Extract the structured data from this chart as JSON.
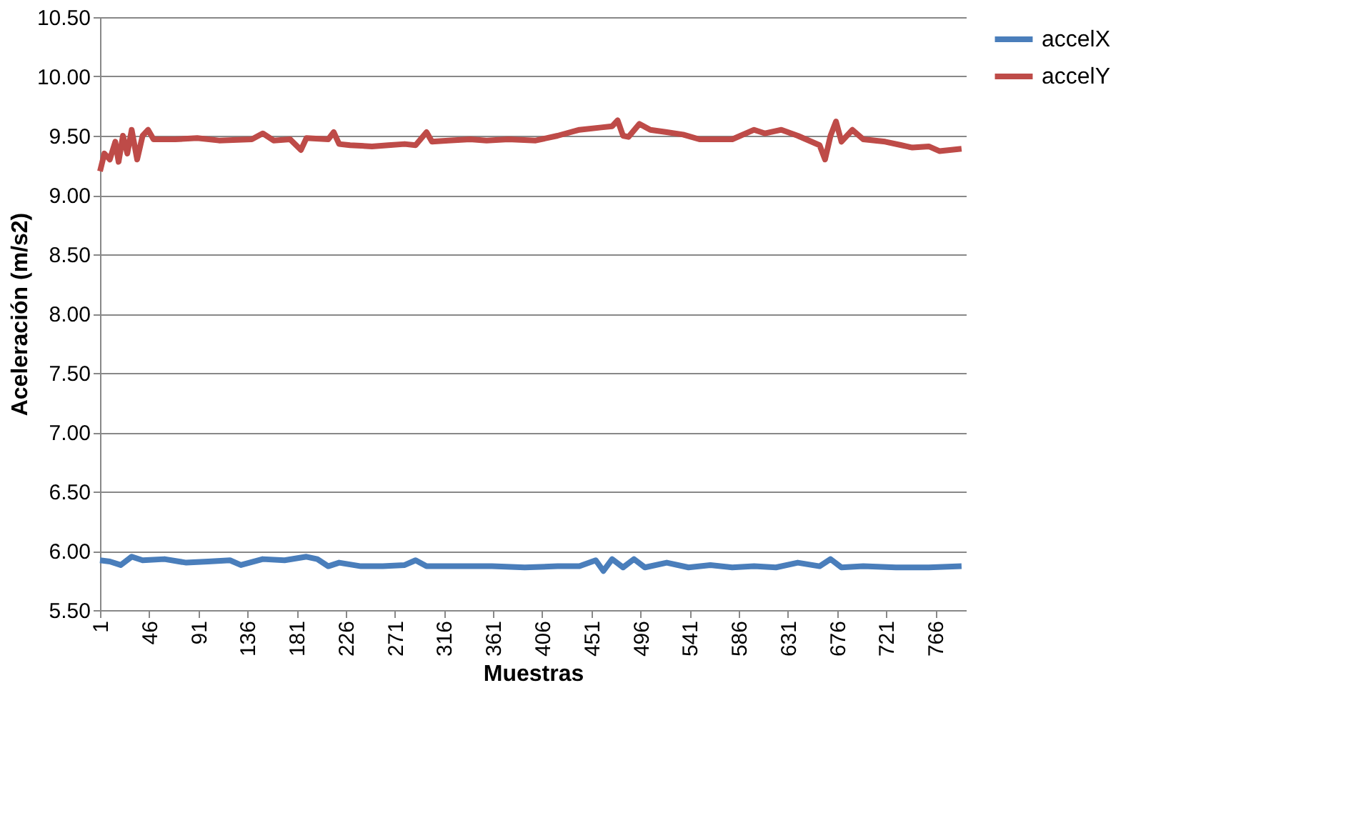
{
  "chart_data": {
    "type": "line",
    "xlabel": "Muestras",
    "ylabel": "Aceleración (m/s2)",
    "xlim": [
      1,
      794
    ],
    "xticks": [
      1,
      46,
      91,
      136,
      181,
      226,
      271,
      316,
      361,
      406,
      451,
      496,
      541,
      586,
      631,
      676,
      721,
      766
    ],
    "ylim": [
      5.5,
      10.5
    ],
    "yticks": [
      {
        "value": 5.5,
        "label": "5.50"
      },
      {
        "value": 6,
        "label": "6.00"
      },
      {
        "value": 6.5,
        "label": "6.50"
      },
      {
        "value": 7,
        "label": "7.00"
      },
      {
        "value": 7.5,
        "label": "7.50"
      },
      {
        "value": 8,
        "label": "8.00"
      },
      {
        "value": 8.5,
        "label": "8.50"
      },
      {
        "value": 9,
        "label": "9.00"
      },
      {
        "value": 9.5,
        "label": "9.50"
      },
      {
        "value": 10,
        "label": "10.00"
      },
      {
        "value": 10.5,
        "label": "10.50"
      }
    ],
    "grid": "y",
    "legend": "right",
    "marker": "none",
    "line_style": "solid",
    "series": [
      {
        "name": "accelX",
        "color": "#4a7ebb",
        "x": [
          1,
          10,
          20,
          30,
          40,
          60,
          80,
          100,
          120,
          130,
          150,
          170,
          190,
          200,
          210,
          220,
          240,
          260,
          280,
          290,
          300,
          330,
          360,
          390,
          420,
          440,
          455,
          462,
          470,
          480,
          490,
          500,
          520,
          540,
          560,
          580,
          600,
          620,
          640,
          660,
          670,
          680,
          700,
          730,
          760,
          790
        ],
        "values": [
          5.92,
          5.91,
          5.88,
          5.95,
          5.92,
          5.93,
          5.9,
          5.91,
          5.92,
          5.88,
          5.93,
          5.92,
          5.95,
          5.93,
          5.87,
          5.9,
          5.87,
          5.87,
          5.88,
          5.92,
          5.87,
          5.87,
          5.87,
          5.86,
          5.87,
          5.87,
          5.92,
          5.83,
          5.93,
          5.86,
          5.93,
          5.86,
          5.9,
          5.86,
          5.88,
          5.86,
          5.87,
          5.86,
          5.9,
          5.87,
          5.93,
          5.86,
          5.87,
          5.86,
          5.86,
          5.87
        ]
      },
      {
        "name": "accelY",
        "color": "#be4b48",
        "x": [
          1,
          5,
          10,
          15,
          18,
          22,
          26,
          30,
          35,
          40,
          45,
          50,
          70,
          90,
          110,
          140,
          150,
          160,
          175,
          185,
          190,
          210,
          215,
          220,
          230,
          250,
          265,
          280,
          290,
          300,
          305,
          320,
          340,
          355,
          375,
          400,
          420,
          440,
          460,
          470,
          475,
          480,
          485,
          495,
          505,
          520,
          535,
          550,
          580,
          600,
          610,
          625,
          640,
          660,
          665,
          670,
          675,
          680,
          690,
          700,
          720,
          735,
          745,
          760,
          770,
          790
        ],
        "values": [
          9.2,
          9.35,
          9.3,
          9.45,
          9.28,
          9.5,
          9.35,
          9.55,
          9.3,
          9.5,
          9.55,
          9.47,
          9.47,
          9.48,
          9.46,
          9.47,
          9.52,
          9.46,
          9.47,
          9.38,
          9.48,
          9.47,
          9.53,
          9.43,
          9.42,
          9.41,
          9.42,
          9.43,
          9.42,
          9.53,
          9.45,
          9.46,
          9.47,
          9.46,
          9.47,
          9.46,
          9.5,
          9.55,
          9.57,
          9.58,
          9.63,
          9.5,
          9.49,
          9.6,
          9.55,
          9.53,
          9.51,
          9.47,
          9.47,
          9.55,
          9.52,
          9.55,
          9.5,
          9.42,
          9.3,
          9.5,
          9.62,
          9.45,
          9.55,
          9.47,
          9.45,
          9.42,
          9.4,
          9.41,
          9.37,
          9.39
        ]
      }
    ]
  }
}
